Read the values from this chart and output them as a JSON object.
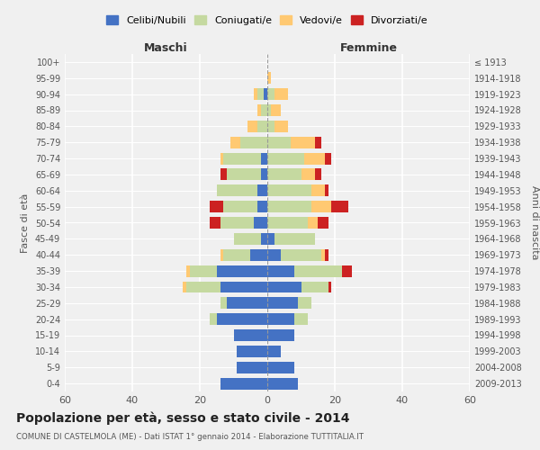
{
  "age_groups": [
    "0-4",
    "5-9",
    "10-14",
    "15-19",
    "20-24",
    "25-29",
    "30-34",
    "35-39",
    "40-44",
    "45-49",
    "50-54",
    "55-59",
    "60-64",
    "65-69",
    "70-74",
    "75-79",
    "80-84",
    "85-89",
    "90-94",
    "95-99",
    "100+"
  ],
  "birth_years": [
    "2009-2013",
    "2004-2008",
    "1999-2003",
    "1994-1998",
    "1989-1993",
    "1984-1988",
    "1979-1983",
    "1974-1978",
    "1969-1973",
    "1964-1968",
    "1959-1963",
    "1954-1958",
    "1949-1953",
    "1944-1948",
    "1939-1943",
    "1934-1938",
    "1929-1933",
    "1924-1928",
    "1919-1923",
    "1914-1918",
    "≤ 1913"
  ],
  "colors": {
    "celibi": "#4472c4",
    "coniugati": "#c5d9a0",
    "vedovi": "#ffc972",
    "divorziati": "#cc2222"
  },
  "maschi": {
    "celibi": [
      14,
      9,
      9,
      10,
      15,
      12,
      14,
      15,
      5,
      2,
      4,
      3,
      3,
      2,
      2,
      0,
      0,
      0,
      1,
      0,
      0
    ],
    "coniugati": [
      0,
      0,
      0,
      0,
      2,
      2,
      10,
      8,
      8,
      8,
      10,
      10,
      12,
      10,
      11,
      8,
      3,
      2,
      2,
      0,
      0
    ],
    "vedovi": [
      0,
      0,
      0,
      0,
      0,
      0,
      1,
      1,
      1,
      0,
      0,
      0,
      0,
      0,
      1,
      3,
      3,
      1,
      1,
      0,
      0
    ],
    "divorziati": [
      0,
      0,
      0,
      0,
      0,
      0,
      0,
      0,
      0,
      0,
      3,
      4,
      0,
      2,
      0,
      0,
      0,
      0,
      0,
      0,
      0
    ]
  },
  "femmine": {
    "celibi": [
      9,
      8,
      4,
      8,
      8,
      9,
      10,
      8,
      4,
      2,
      0,
      0,
      0,
      0,
      0,
      0,
      0,
      0,
      0,
      0,
      0
    ],
    "coniugati": [
      0,
      0,
      0,
      0,
      4,
      4,
      8,
      14,
      12,
      12,
      12,
      13,
      13,
      10,
      11,
      7,
      2,
      1,
      2,
      0,
      0
    ],
    "vedovi": [
      0,
      0,
      0,
      0,
      0,
      0,
      0,
      0,
      1,
      0,
      3,
      6,
      4,
      4,
      6,
      7,
      4,
      3,
      4,
      1,
      0
    ],
    "divorziati": [
      0,
      0,
      0,
      0,
      0,
      0,
      1,
      3,
      1,
      0,
      3,
      5,
      1,
      2,
      2,
      2,
      0,
      0,
      0,
      0,
      0
    ]
  },
  "xlim": 60,
  "title": "Popolazione per età, sesso e stato civile - 2014",
  "subtitle": "COMUNE DI CASTELMOLA (ME) - Dati ISTAT 1° gennaio 2014 - Elaborazione TUTTITALIA.IT",
  "ylabel_left": "Fasce di età",
  "ylabel_right": "Anni di nascita",
  "xlabel_left": "Maschi",
  "xlabel_right": "Femmine",
  "legend_labels": [
    "Celibi/Nubili",
    "Coniugati/e",
    "Vedovi/e",
    "Divorziati/e"
  ],
  "bg_color": "#f0f0f0"
}
